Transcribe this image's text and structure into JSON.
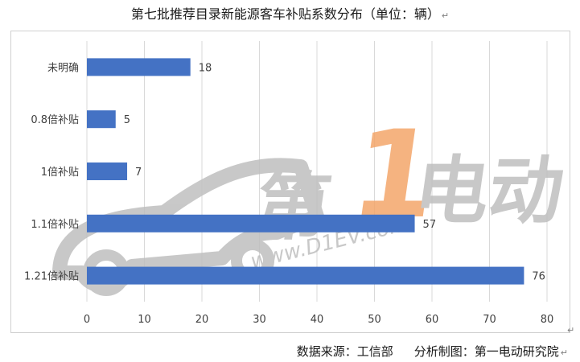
{
  "title": "第七批推荐目录新能源客车补贴系数分布（单位：辆）",
  "source": {
    "data_source": "数据来源：工信部",
    "chart_by": "分析制图：第一电动研究院"
  },
  "watermark": {
    "text": "www.D1EV.com",
    "brand_text": "第1电动",
    "colors": {
      "gray": "#bfbfbf",
      "orange": "#f4a66a"
    }
  },
  "colors": {
    "bar": "#4472c4",
    "grid": "#d9d9d9",
    "text": "#404040"
  },
  "chart_data": {
    "type": "bar",
    "orientation": "horizontal",
    "title": "第七批推荐目录新能源客车补贴系数分布（单位：辆）",
    "categories": [
      "未明确",
      "0.8倍补贴",
      "1倍补贴",
      "1.1倍补贴",
      "1.21倍补贴"
    ],
    "values": [
      18,
      5,
      7,
      57,
      76
    ],
    "xlim": [
      0,
      80
    ],
    "x_ticks": [
      0,
      10,
      20,
      30,
      40,
      50,
      60,
      70,
      80
    ],
    "grid": true,
    "data_labels": true,
    "legend": "none"
  }
}
